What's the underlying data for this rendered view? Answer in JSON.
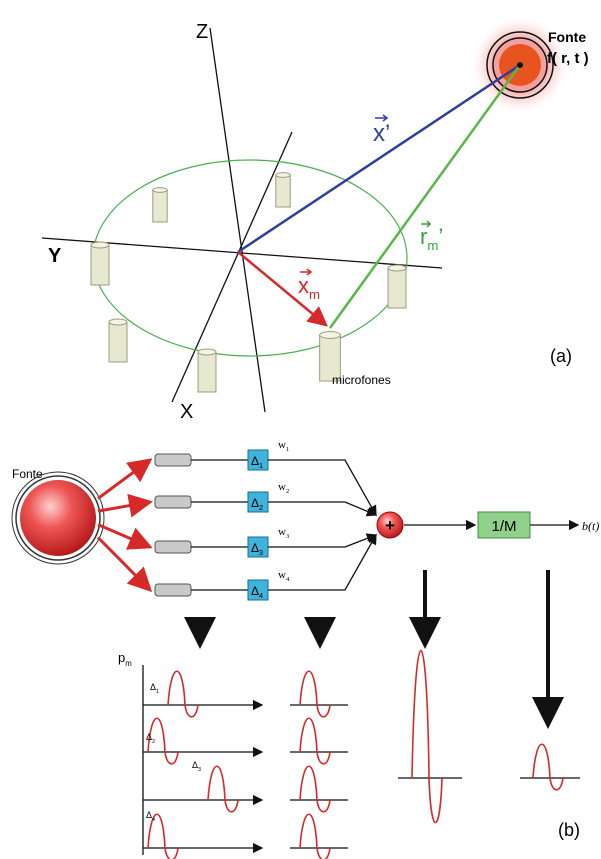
{
  "panel_a": {
    "label": "(a)",
    "axes": {
      "z": "Z",
      "y": "Y",
      "x": "X"
    },
    "source": {
      "title": "Fonte",
      "function": "f( r, t )"
    },
    "vectors": {
      "source_position": {
        "symbol": "x",
        "prime": "’"
      },
      "source_to_mic": {
        "symbol": "r",
        "sub": "m",
        "prime": "’"
      },
      "mic_position": {
        "symbol": "x",
        "sub": "m"
      }
    },
    "microphones": "microfones"
  },
  "panel_b": {
    "label": "(b)",
    "source": "Fonte",
    "delays": [
      {
        "symbol": "Δ",
        "sub": "1"
      },
      {
        "symbol": "Δ",
        "sub": "2"
      },
      {
        "symbol": "Δ",
        "sub": "3"
      },
      {
        "symbol": "Δ",
        "sub": "4"
      }
    ],
    "weights": [
      {
        "symbol": "w",
        "sub": "1"
      },
      {
        "symbol": "w",
        "sub": "2"
      },
      {
        "symbol": "w",
        "sub": "3"
      },
      {
        "symbol": "w",
        "sub": "4"
      }
    ],
    "sum": "+",
    "normalization": "1/M",
    "output": "b(t)",
    "plot_axis": {
      "symbol": "p",
      "sub": "m"
    },
    "plot_delays": [
      {
        "symbol": "Δ",
        "sub": "1"
      },
      {
        "symbol": "Δ",
        "sub": "2"
      },
      {
        "symbol": "Δ",
        "sub": "3"
      },
      {
        "symbol": "Δ",
        "sub": "4"
      }
    ]
  }
}
